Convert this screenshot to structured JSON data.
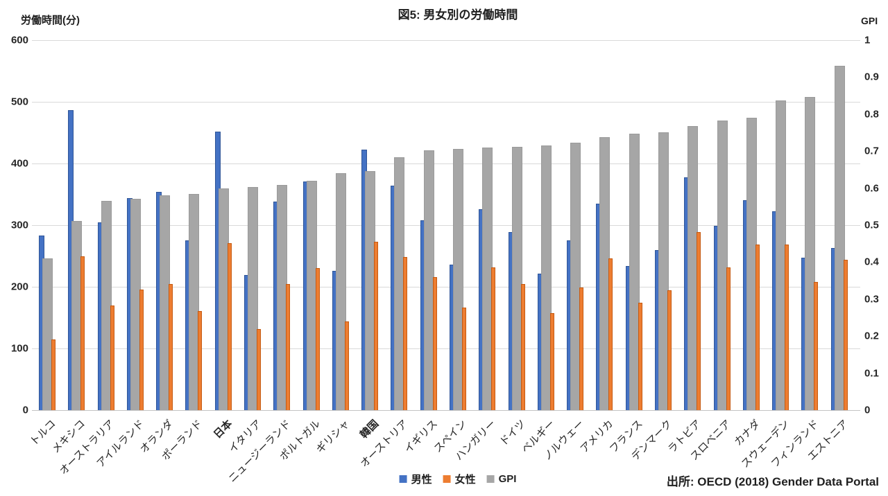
{
  "title": "図5: 男女別の労働時間",
  "source": "出所: OECD (2018) Gender Data Portal",
  "colors": {
    "male": "#4472c4",
    "male_border": "#2f5597",
    "female": "#ed7d31",
    "female_border": "#c55a11",
    "gpi": "#a6a6a6",
    "gpi_border": "#9a9a9a",
    "gridline": "#d9d9d9",
    "axis_text": "#262626"
  },
  "chart_data": {
    "type": "bar",
    "title": "図5: 男女別の労働時間",
    "ylabel_left": "労働時間(分)",
    "ylabel_right": "GPI",
    "grid": true,
    "legend_position": "bottom",
    "left_axis": {
      "min": 0,
      "max": 600,
      "step": 100,
      "ticks": [
        "600",
        "500",
        "400",
        "300",
        "200",
        "100",
        "0"
      ]
    },
    "right_axis": {
      "min": 0,
      "max": 1,
      "step": 0.1,
      "ticks": [
        "1",
        "0.9",
        "0.8",
        "0.7",
        "0.6",
        "0.5",
        "0.4",
        "0.3",
        "0.2",
        "0.1",
        "0"
      ]
    },
    "categories": [
      "トルコ",
      "メキシコ",
      "オーストラリア",
      "アイルランド",
      "オランダ",
      "ポーランド",
      "日本",
      "イタリア",
      "ニュージーランド",
      "ポルトガル",
      "ギリシャ",
      "韓国",
      "オーストリア",
      "イギリス",
      "スペイン",
      "ハンガリー",
      "ドイツ",
      "ベルギー",
      "ノルウェー",
      "アメリカ",
      "フランス",
      "デンマーク",
      "ラトビア",
      "スロベニア",
      "カナダ",
      "スウェーデン",
      "フィンランド",
      "エストニア"
    ],
    "emphasized_categories": [
      "日本",
      "韓国"
    ],
    "series": [
      {
        "name": "男性",
        "axis": "left",
        "color": "#4472c4",
        "values": [
          283,
          486,
          304,
          344,
          354,
          275,
          452,
          219,
          338,
          371,
          226,
          422,
          364,
          308,
          236,
          326,
          289,
          221,
          275,
          335,
          234,
          259,
          377,
          299,
          341,
          322,
          247,
          263
        ]
      },
      {
        "name": "女性",
        "axis": "left",
        "color": "#ed7d31",
        "values": [
          115,
          250,
          170,
          196,
          204,
          161,
          271,
          132,
          205,
          230,
          144,
          273,
          248,
          216,
          166,
          231,
          205,
          157,
          199,
          246,
          174,
          194,
          289,
          232,
          268,
          268,
          208,
          244
        ]
      },
      {
        "name": "GPI",
        "axis": "right",
        "color": "#a6a6a6",
        "values": [
          0.41,
          0.512,
          0.565,
          0.572,
          0.58,
          0.585,
          0.6,
          0.603,
          0.609,
          0.62,
          0.64,
          0.647,
          0.684,
          0.702,
          0.706,
          0.709,
          0.711,
          0.716,
          0.722,
          0.737,
          0.748,
          0.751,
          0.768,
          0.783,
          0.79,
          0.837,
          0.847,
          0.93
        ]
      }
    ]
  }
}
